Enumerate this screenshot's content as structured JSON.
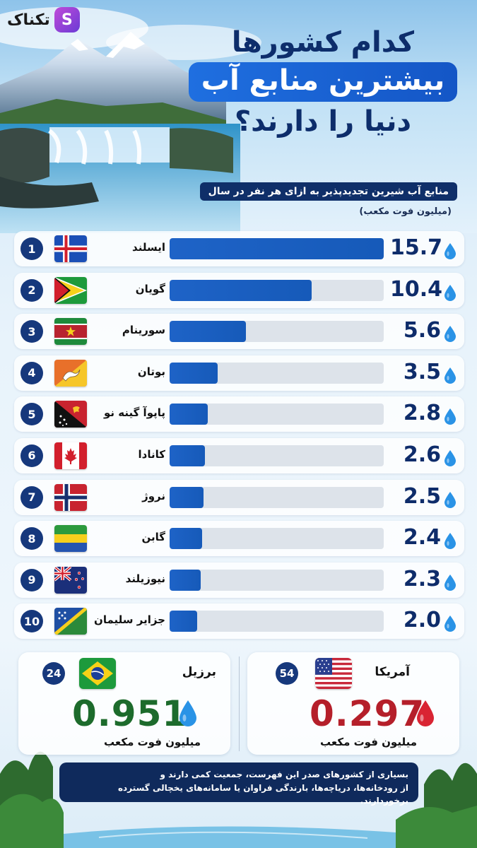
{
  "brand": {
    "name": "تکناک",
    "mark": "S"
  },
  "title": {
    "line1": "کدام کشورها",
    "line2": "بیشترین منابع آب",
    "line3": "دنیا را دارند؟"
  },
  "subtitle": "منابع آب شیرین تجدیدپذیر به ازای هر نفر در سال",
  "unit": "(میلیون فوت مکعب)",
  "colors": {
    "bar": "#1e63c7",
    "track": "#dde3ea",
    "badge": "#16387c",
    "green_value": "#1d6b2c",
    "red_value": "#b51f2a",
    "drop_blue": "#2a93e6",
    "drop_red": "#d92433"
  },
  "chart_data": {
    "type": "bar",
    "orientation": "horizontal",
    "title": "کدام کشورها بیشترین منابع آب دنیا را دارند؟",
    "subtitle": "منابع آب شیرین تجدیدپذیر به ازای هر نفر در سال",
    "xlabel": "(میلیون فوت مکعب)",
    "xlim": [
      0,
      15.7
    ],
    "grid": false,
    "legend": "none",
    "categories": [
      "ایسلند",
      "گویان",
      "سورینام",
      "بوتان",
      "پاپوآ گینه نو",
      "کانادا",
      "نروژ",
      "گابن",
      "نیوزیلند",
      "جزایر سلیمان"
    ],
    "values": [
      15.7,
      10.4,
      5.6,
      3.5,
      2.8,
      2.6,
      2.5,
      2.4,
      2.3,
      2.0
    ],
    "ranks": [
      "1",
      "2",
      "3",
      "4",
      "5",
      "6",
      "7",
      "8",
      "9",
      "10"
    ],
    "value_labels": [
      "15.7",
      "10.4",
      "5.6",
      "3.5",
      "2.8",
      "2.6",
      "2.5",
      "2.4",
      "2.3",
      "2.0"
    ],
    "flags": [
      "iceland-flag-icon",
      "guyana-flag-icon",
      "suriname-flag-icon",
      "bhutan-flag-icon",
      "papua-new-guinea-flag-icon",
      "canada-flag-icon",
      "norway-flag-icon",
      "gabon-flag-icon",
      "new-zealand-flag-icon",
      "solomon-islands-flag-icon"
    ]
  },
  "comparison": {
    "brazil": {
      "name": "برزیل",
      "rank": "24",
      "value": "0.951",
      "unit": "میلیون فوت مکعب",
      "flag": "brazil-flag-icon"
    },
    "usa": {
      "name": "آمریکا",
      "rank": "54",
      "value": "0.297",
      "unit": "میلیون فوت مکعب",
      "flag": "usa-flag-icon"
    }
  },
  "note": {
    "line1": "بسیاری از کشورهای صدر این فهرست، جمعیت کمی دارند و",
    "line2": "از رودخانه‌ها، دریاچه‌ها، بارندگی فراوان یا سامانه‌های یخچالی گسترده برخوردارند."
  }
}
